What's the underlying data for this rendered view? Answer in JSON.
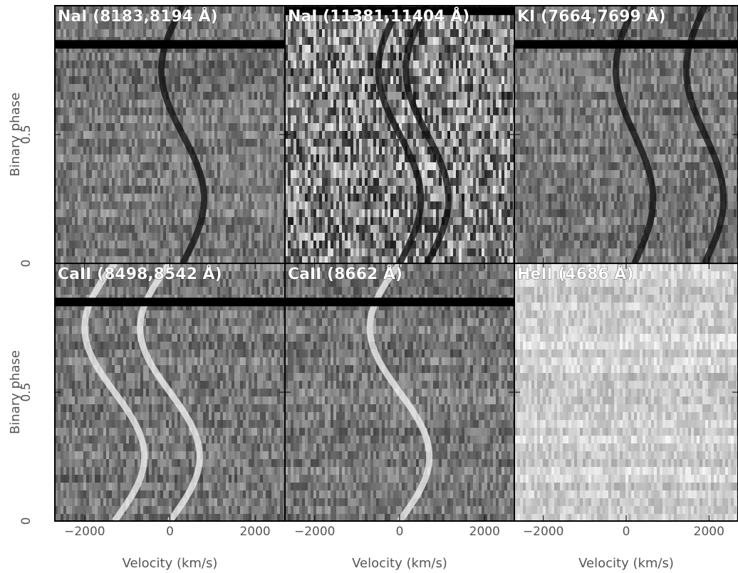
{
  "chart_data": {
    "type": "heatmap",
    "colormap": "grayscale",
    "grid": "2x3",
    "xlabel": "Velocity (km/s)",
    "ylabel": "Binary phase",
    "xlim": [
      -2700,
      2700
    ],
    "ylim": [
      0,
      1
    ],
    "xticks": [
      -2000,
      0,
      2000
    ],
    "yticks": [
      0,
      0.5
    ],
    "panels": [
      {
        "title": "NaI (8183,8194 Å)",
        "row": 0,
        "col": 0,
        "feature": "absorption",
        "data_gap_phase": 0.85,
        "tracks": [
          {
            "v0": 300,
            "amp": 500
          }
        ]
      },
      {
        "title": "NaI (11381,11404 Å)",
        "row": 0,
        "col": 1,
        "feature": "absorption",
        "data_gap_phase": 0.98,
        "tracks": [
          {
            "v0": 0,
            "amp": 500
          },
          {
            "v0": 650,
            "amp": 500
          }
        ]
      },
      {
        "title": "KI (7664,7699 Å)",
        "row": 0,
        "col": 2,
        "feature": "absorption",
        "data_gap_phase": 0.85,
        "tracks": [
          {
            "v0": 200,
            "amp": 450
          },
          {
            "v0": 1900,
            "amp": 450
          }
        ]
      },
      {
        "title": "CaII (8498,8542 Å)",
        "row": 1,
        "col": 0,
        "feature": "emission",
        "data_gap_phase": 0.85,
        "tracks": [
          {
            "v0": -1300,
            "amp": 700
          },
          {
            "v0": 0,
            "amp": 700
          }
        ]
      },
      {
        "title": "CaII (8662 Å)",
        "row": 1,
        "col": 1,
        "feature": "emission",
        "data_gap_phase": 0.85,
        "tracks": [
          {
            "v0": 0,
            "amp": 700
          }
        ]
      },
      {
        "title": "HeII (4686 Å)",
        "row": 1,
        "col": 2,
        "feature": "faint",
        "data_gap_phase": null,
        "tracks": []
      }
    ]
  }
}
